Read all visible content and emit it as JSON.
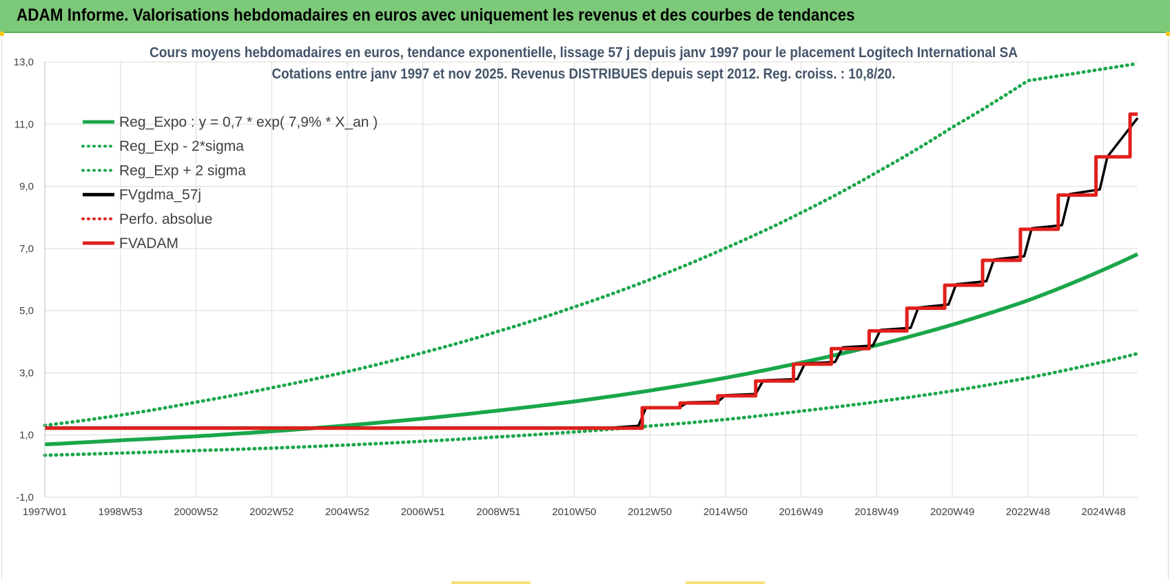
{
  "header": {
    "title": "ADAM Informe. Valorisations hebdomadaires en euros avec uniquement les revenus et des courbes de tendances"
  },
  "chart_data": {
    "type": "line",
    "title": "Cours moyens hebdomadaires en euros, tendance exponentielle, lissage 57 j depuis janv 1997  pour le placement Logitech International SA",
    "subtitle": "Cotations entre janv 1997 et nov 2025. Revenus  DISTRIBUES depuis sept 2012. Reg.  croiss. : 10,8/20.",
    "xlabel": "",
    "ylabel": "",
    "x_range": [
      1997.0,
      2025.9
    ],
    "ylim": [
      -1.0,
      13.0
    ],
    "y_ticks": [
      -1.0,
      1.0,
      3.0,
      5.0,
      7.0,
      9.0,
      11.0,
      13.0
    ],
    "y_tick_labels": [
      "-1,0",
      "1,0",
      "3,0",
      "5,0",
      "7,0",
      "9,0",
      "11,0",
      "13,0"
    ],
    "x_ticks": [
      1997.0,
      1999.0,
      2001.0,
      2003.0,
      2005.0,
      2007.0,
      2009.0,
      2011.0,
      2013.0,
      2015.0,
      2017.0,
      2019.0,
      2021.0,
      2023.0,
      2025.0
    ],
    "x_tick_labels": [
      "1997W01",
      "1998W53",
      "2000W52",
      "2002W52",
      "2004W52",
      "2006W51",
      "2008W51",
      "2010W50",
      "2012W50",
      "2014W50",
      "2016W49",
      "2018W49",
      "2020W49",
      "2022W48",
      "2024W48"
    ],
    "grid": true,
    "legend_position": "top-left",
    "series": [
      {
        "name": "Reg_Expo : y = 0,7 * exp( 7,9% *  X_an )",
        "color": "#1aa64a",
        "style": "solid",
        "x": [
          1997,
          1999,
          2001,
          2003,
          2005,
          2007,
          2009,
          2011,
          2013,
          2015,
          2017,
          2019,
          2021,
          2023,
          2025.9
        ],
        "values": [
          0.7,
          0.83,
          0.96,
          1.12,
          1.31,
          1.53,
          1.79,
          2.08,
          2.43,
          2.84,
          3.33,
          3.89,
          4.55,
          5.33,
          6.82
        ]
      },
      {
        "name": "Reg_Exp - 2*sigma",
        "color": "#1aa64a",
        "style": "dotted",
        "x": [
          1997,
          1999,
          2001,
          2003,
          2005,
          2007,
          2009,
          2011,
          2013,
          2015,
          2017,
          2019,
          2021,
          2023,
          2025.9
        ],
        "values": [
          0.35,
          0.42,
          0.5,
          0.58,
          0.68,
          0.8,
          0.94,
          1.1,
          1.29,
          1.5,
          1.77,
          2.07,
          2.42,
          2.84,
          3.62
        ]
      },
      {
        "name": "Reg_Exp + 2 sigma",
        "color": "#1aa64a",
        "style": "dotted",
        "x": [
          1997,
          1999,
          2001,
          2003,
          2005,
          2007,
          2009,
          2011,
          2013,
          2015,
          2017,
          2019,
          2021,
          2023,
          2025.9
        ],
        "values": [
          1.31,
          1.64,
          2.06,
          2.52,
          3.04,
          3.65,
          4.34,
          5.12,
          6.0,
          7.01,
          8.15,
          9.45,
          10.9,
          12.4,
          12.95
        ]
      },
      {
        "name": "FVgdma_57j",
        "color": "#000000",
        "style": "solid",
        "x": [
          1997,
          2012.0,
          2012.7,
          2012.9,
          2013.8,
          2014.0,
          2014.8,
          2015.0,
          2015.8,
          2016.0,
          2016.9,
          2017.1,
          2017.9,
          2018.1,
          2018.9,
          2019.1,
          2019.9,
          2020.1,
          2020.9,
          2021.1,
          2021.9,
          2022.1,
          2022.9,
          2023.1,
          2023.9,
          2024.1,
          2024.9,
          2025.1,
          2025.9
        ],
        "values": [
          1.24,
          1.24,
          1.3,
          1.88,
          1.9,
          2.05,
          2.07,
          2.28,
          2.32,
          2.76,
          2.8,
          3.3,
          3.35,
          3.82,
          3.88,
          4.38,
          4.45,
          5.1,
          5.2,
          5.85,
          5.95,
          6.65,
          6.75,
          7.65,
          7.75,
          8.75,
          8.9,
          9.95,
          11.2
        ]
      },
      {
        "name": "Perfo. absolue",
        "color": "#e0201b",
        "style": "dotted",
        "x": [],
        "values": []
      },
      {
        "name": "FVADAM",
        "color": "#e0201b",
        "style": "solid",
        "x": [
          1997,
          2012.8,
          2012.8,
          2013.8,
          2013.8,
          2014.8,
          2014.8,
          2015.8,
          2015.8,
          2016.8,
          2016.8,
          2017.8,
          2017.8,
          2018.8,
          2018.8,
          2019.8,
          2019.8,
          2020.8,
          2020.8,
          2021.8,
          2021.8,
          2022.8,
          2022.8,
          2023.8,
          2023.8,
          2024.8,
          2024.8,
          2025.7,
          2025.7,
          2025.9
        ],
        "values": [
          1.22,
          1.22,
          1.88,
          1.88,
          2.03,
          2.03,
          2.26,
          2.26,
          2.74,
          2.74,
          3.28,
          3.28,
          3.78,
          3.78,
          4.35,
          4.35,
          5.08,
          5.08,
          5.82,
          5.82,
          6.62,
          6.62,
          7.62,
          7.62,
          8.72,
          8.72,
          9.95,
          9.95,
          11.32,
          11.32
        ]
      }
    ]
  }
}
